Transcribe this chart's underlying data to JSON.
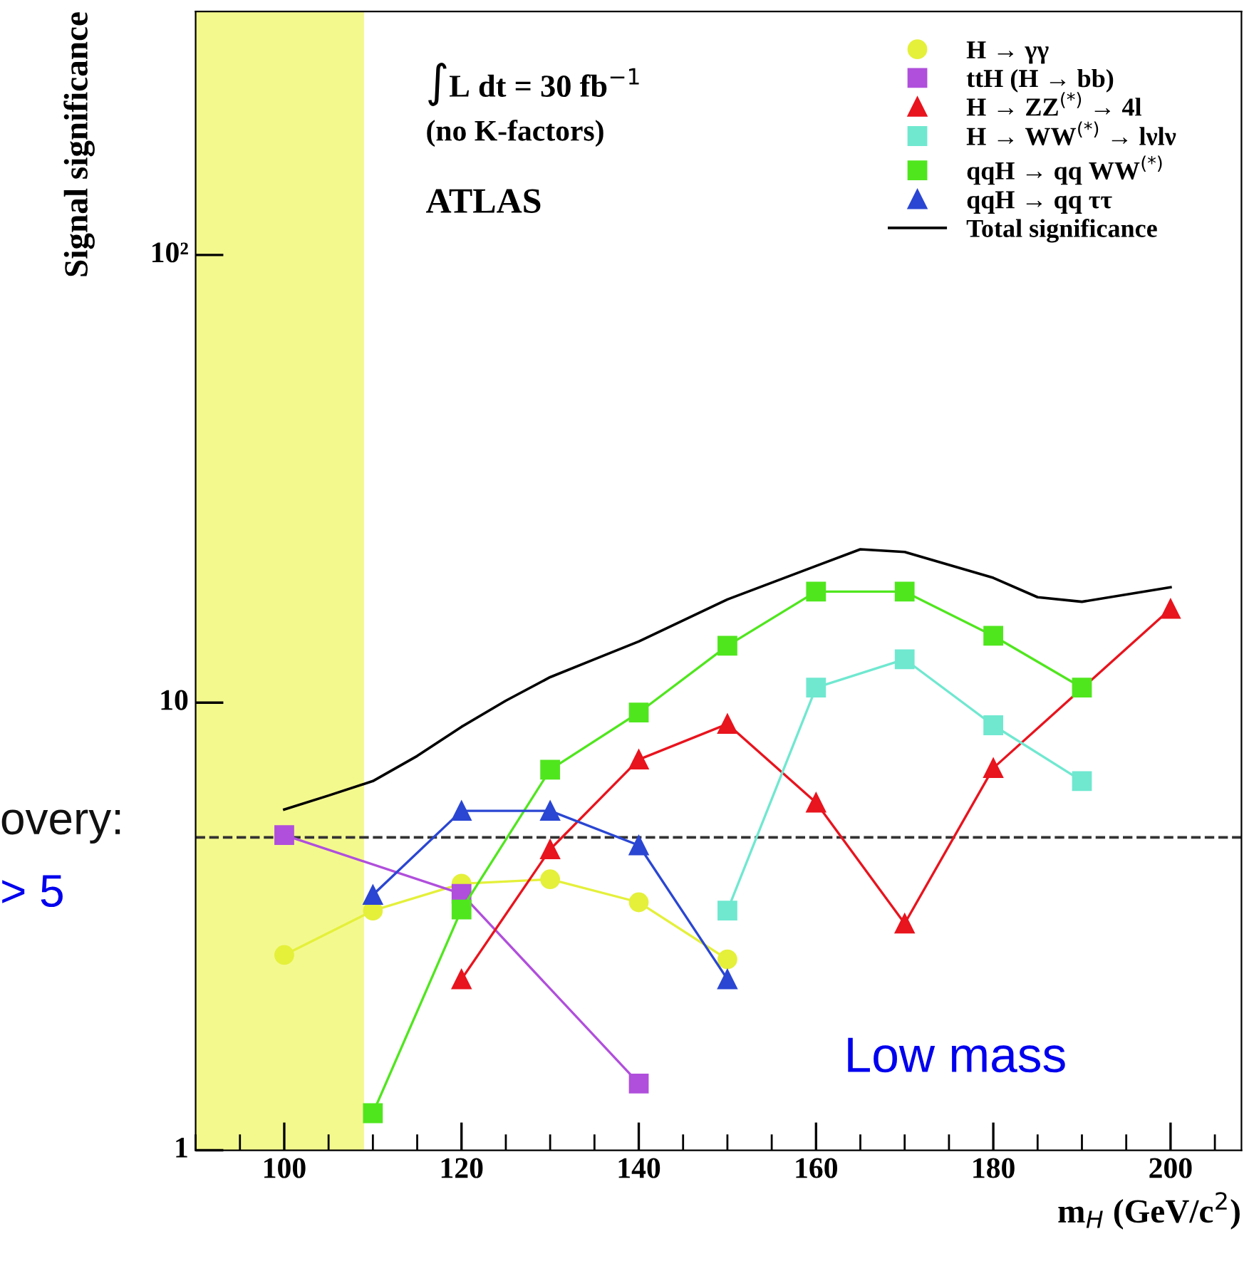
{
  "chart_data": {
    "type": "line",
    "xlabel": "m$_{H}$ (GeV/c$^{2}$)",
    "ylabel": "Signal significance",
    "log": "y",
    "xlim": [
      90,
      208
    ],
    "ylim": [
      1,
      350
    ],
    "xticks": [
      100,
      120,
      140,
      160,
      180,
      200
    ],
    "yticks": [
      {
        "value": 1,
        "label": "1"
      },
      {
        "value": 10,
        "label": "10"
      },
      {
        "value": 100,
        "label": "10²"
      }
    ],
    "grid": false,
    "legend": "top right",
    "line_style": "solid",
    "bands": [
      {
        "axis": "x",
        "from": 90,
        "to": 109,
        "color": "#f4f98e"
      }
    ],
    "ref_lines": [
      {
        "axis": "y",
        "value": 5,
        "color": "#333333",
        "line_style": "dashed"
      }
    ],
    "annotations": [
      "∫L dt = 30 fb$^{−1}$",
      "(no K-factors)",
      "ATLAS",
      "overy:",
      "> 5",
      "Low mass"
    ],
    "series": [
      {
        "name": "H → γγ",
        "color": "#e4f03a",
        "marker": "circle",
        "x": [
          100,
          110,
          120,
          130,
          140,
          150
        ],
        "values": [
          2.73,
          3.43,
          3.94,
          4.03,
          3.58,
          2.67
        ]
      },
      {
        "name": "ttH (H → bb)",
        "color": "#b04fdc",
        "marker": "square",
        "x": [
          100,
          120,
          140
        ],
        "values": [
          5.06,
          3.74,
          1.41
        ]
      },
      {
        "name": "H → ZZ$^{(*)}$ → 4l",
        "color": "#e8141e",
        "marker": "triangle",
        "x": [
          120,
          130,
          140,
          150,
          160,
          170,
          180,
          200
        ],
        "values": [
          2.41,
          4.7,
          7.46,
          8.96,
          5.98,
          3.21,
          7.14,
          16.2
        ]
      },
      {
        "name": "H → WW$^{(*)}$ → lνlν",
        "color": "#70e8d0",
        "marker": "square",
        "x": [
          150,
          160,
          170,
          180,
          190
        ],
        "values": [
          3.43,
          10.8,
          12.5,
          8.9,
          6.68
        ]
      },
      {
        "name": "qqH → qq WW$^{(*)}$",
        "color": "#50e61e",
        "marker": "square",
        "x": [
          110,
          120,
          130,
          140,
          150,
          160,
          170,
          180,
          190
        ],
        "values": [
          1.21,
          3.45,
          7.08,
          9.5,
          13.4,
          17.7,
          17.7,
          14.1,
          10.8
        ]
      },
      {
        "name": "qqH → qq ττ",
        "color": "#2a46d2",
        "marker": "triangle",
        "x": [
          110,
          120,
          130,
          140,
          150
        ],
        "values": [
          3.72,
          5.73,
          5.73,
          4.8,
          2.41
        ]
      },
      {
        "name": "Total significance",
        "color": "#000000",
        "marker": "none",
        "x": [
          100,
          105,
          110,
          115,
          120,
          125,
          130,
          135,
          140,
          150,
          160,
          165,
          170,
          180,
          185,
          190,
          200
        ],
        "values": [
          5.77,
          6.2,
          6.68,
          7.6,
          8.83,
          10.1,
          11.4,
          12.5,
          13.7,
          17.0,
          20.2,
          22.0,
          21.7,
          19.0,
          17.2,
          16.8,
          18.1
        ]
      }
    ]
  }
}
